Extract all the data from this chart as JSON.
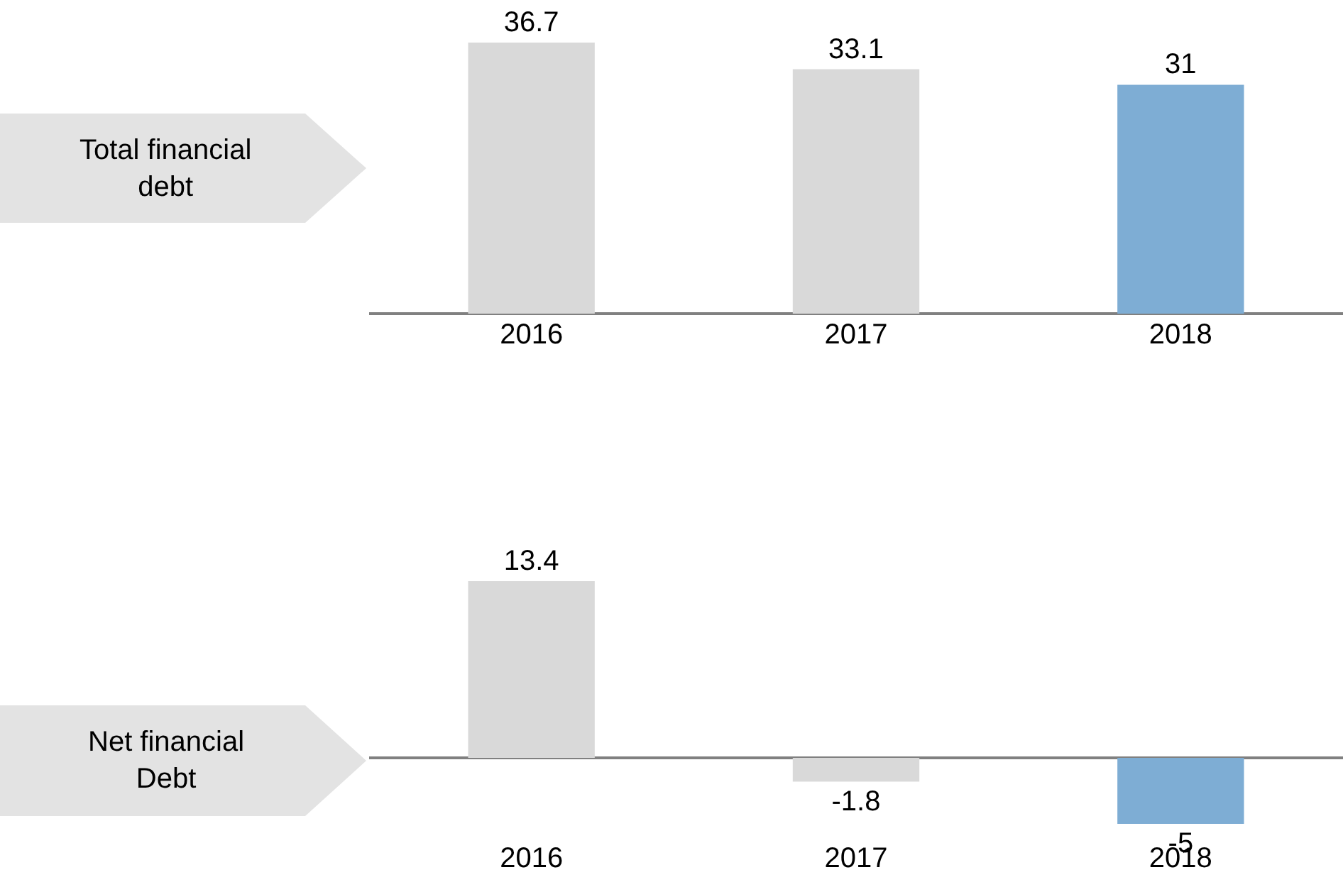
{
  "chart_data": [
    {
      "type": "bar",
      "title": "Total financial debt",
      "categories": [
        "2016",
        "2017",
        "2018"
      ],
      "values": [
        36.7,
        33.1,
        31
      ],
      "colors": [
        "#d9d9d9",
        "#d9d9d9",
        "#7eadd4"
      ],
      "data_labels": true,
      "tick_labels": "x"
    },
    {
      "type": "bar",
      "title": "Net financial Debt",
      "categories": [
        "2016",
        "2017",
        "2018"
      ],
      "values": [
        13.4,
        -1.8,
        -5
      ],
      "colors": [
        "#d9d9d9",
        "#d9d9d9",
        "#7eadd4"
      ],
      "data_labels": true,
      "tick_labels": "x"
    }
  ]
}
